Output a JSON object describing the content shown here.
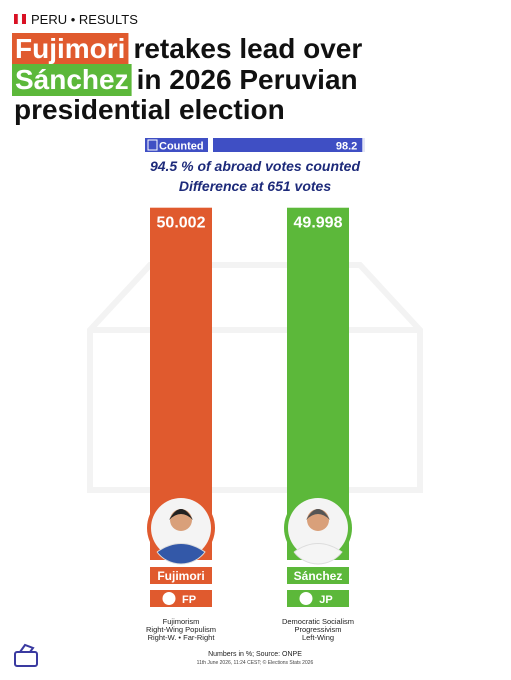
{
  "header": {
    "kicker": "PERU • RESULTS"
  },
  "chart_data": {
    "type": "bar",
    "title": {
      "highlight_1": "Fujimori",
      "text_1": "retakes lead over",
      "highlight_2": "Sánchez",
      "text_2": "in 2026 Peruvian",
      "text_3": "presidential election"
    },
    "counted": {
      "label": "Counted",
      "value": 98.2,
      "xlim": [
        0,
        100
      ],
      "color": "#3f4fc4"
    },
    "subtitle": [
      "94.5 % of abroad votes counted",
      "Difference at 651 votes"
    ],
    "categories": [
      "Fujimori",
      "Sánchez"
    ],
    "values": [
      50.002,
      49.998
    ],
    "colors": [
      "#e05a2e",
      "#5cb83a"
    ],
    "ylim": [
      0,
      50.1
    ],
    "parties": [
      "FP",
      "JP"
    ],
    "ideologies": [
      [
        "Fujimorism",
        "Right-Wing Populism",
        "Right-W. • Far-Right"
      ],
      [
        "Democratic Socialism",
        "Progressivism",
        "Left-Wing"
      ]
    ]
  },
  "footer": {
    "source": "Numbers in %; Source: ONPE",
    "credit": "11th June 2026, 11:24 CEST; © Elections Stats 2026"
  }
}
